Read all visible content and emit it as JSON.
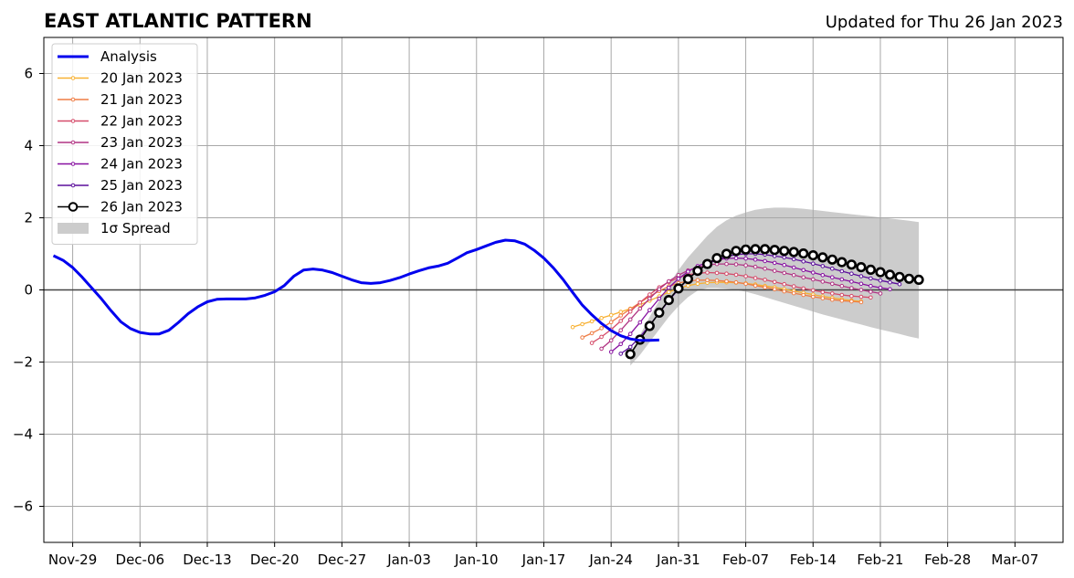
{
  "chart_data": {
    "type": "line",
    "title": "EAST ATLANTIC PATTERN",
    "subtitle": "Updated for Thu 26 Jan 2023",
    "xlabel": "",
    "ylabel": "",
    "x_range": [
      "2022-11-26",
      "2023-03-12"
    ],
    "ylim": [
      -7,
      7
    ],
    "yticks": [
      -6,
      -4,
      -2,
      0,
      2,
      4,
      6
    ],
    "ytick_labels": [
      "−6",
      "−4",
      "−2",
      "0",
      "2",
      "4",
      "6"
    ],
    "xticks": [
      "2022-11-29",
      "2022-12-06",
      "2022-12-13",
      "2022-12-20",
      "2022-12-27",
      "2023-01-03",
      "2023-01-10",
      "2023-01-17",
      "2023-01-24",
      "2023-01-31",
      "2023-02-07",
      "2023-02-14",
      "2023-02-21",
      "2023-02-28",
      "2023-03-07"
    ],
    "xtick_labels": [
      "Nov-29",
      "Dec-06",
      "Dec-13",
      "Dec-20",
      "Dec-27",
      "Jan-03",
      "Jan-10",
      "Jan-17",
      "Jan-24",
      "Jan-31",
      "Feb-07",
      "Feb-14",
      "Feb-21",
      "Feb-28",
      "Mar-07"
    ],
    "grid": true,
    "legend_position": "top-left",
    "analysis": {
      "name": "Analysis",
      "color": "#0000ee",
      "start": "2022-11-27",
      "values": [
        0.95,
        0.82,
        0.62,
        0.35,
        0.05,
        -0.25,
        -0.58,
        -0.88,
        -1.07,
        -1.18,
        -1.22,
        -1.22,
        -1.12,
        -0.9,
        -0.66,
        -0.47,
        -0.33,
        -0.26,
        -0.25,
        -0.25,
        -0.25,
        -0.22,
        -0.15,
        -0.05,
        0.12,
        0.38,
        0.55,
        0.58,
        0.55,
        0.48,
        0.38,
        0.28,
        0.2,
        0.18,
        0.2,
        0.26,
        0.34,
        0.44,
        0.53,
        0.61,
        0.66,
        0.74,
        0.88,
        1.03,
        1.12,
        1.22,
        1.32,
        1.38,
        1.36,
        1.27,
        1.1,
        0.88,
        0.61,
        0.29,
        -0.07,
        -0.42,
        -0.69,
        -0.93,
        -1.13,
        -1.27,
        -1.36,
        -1.4,
        -1.4,
        -1.39
      ]
    },
    "forecasts": [
      {
        "name": "20 Jan 2023",
        "color": "#f8b132",
        "start": "2023-01-20",
        "values": [
          -1.03,
          -0.95,
          -0.87,
          -0.78,
          -0.7,
          -0.61,
          -0.52,
          -0.41,
          -0.3,
          -0.18,
          -0.06,
          0.04,
          0.12,
          0.17,
          0.2,
          0.21,
          0.21,
          0.2,
          0.18,
          0.15,
          0.11,
          0.07,
          0.02,
          -0.03,
          -0.08,
          -0.13,
          -0.18,
          -0.22,
          -0.26,
          -0.29,
          -0.32
        ]
      },
      {
        "name": "21 Jan 2023",
        "color": "#ef7d45",
        "start": "2023-01-21",
        "values": [
          -1.32,
          -1.2,
          -1.06,
          -0.89,
          -0.71,
          -0.53,
          -0.35,
          -0.18,
          -0.03,
          0.1,
          0.19,
          0.24,
          0.27,
          0.27,
          0.26,
          0.24,
          0.21,
          0.17,
          0.12,
          0.07,
          0.02,
          -0.04,
          -0.09,
          -0.14,
          -0.19,
          -0.23,
          -0.27,
          -0.3,
          -0.32,
          -0.34
        ]
      },
      {
        "name": "22 Jan 2023",
        "color": "#d54b6a",
        "start": "2023-01-22",
        "values": [
          -1.47,
          -1.3,
          -1.1,
          -0.86,
          -0.6,
          -0.35,
          -0.13,
          0.07,
          0.22,
          0.34,
          0.42,
          0.46,
          0.48,
          0.47,
          0.45,
          0.42,
          0.38,
          0.33,
          0.28,
          0.22,
          0.16,
          0.1,
          0.04,
          -0.01,
          -0.06,
          -0.1,
          -0.14,
          -0.17,
          -0.19,
          -0.21
        ]
      },
      {
        "name": "23 Jan 2023",
        "color": "#b13383",
        "start": "2023-01-23",
        "values": [
          -1.63,
          -1.4,
          -1.12,
          -0.82,
          -0.52,
          -0.24,
          0.02,
          0.24,
          0.41,
          0.54,
          0.63,
          0.69,
          0.72,
          0.72,
          0.71,
          0.68,
          0.64,
          0.59,
          0.53,
          0.47,
          0.41,
          0.35,
          0.29,
          0.23,
          0.17,
          0.11,
          0.05,
          0.0,
          -0.05,
          -0.1
        ]
      },
      {
        "name": "24 Jan 2023",
        "color": "#8710a0",
        "start": "2023-01-24",
        "values": [
          -1.72,
          -1.5,
          -1.22,
          -0.9,
          -0.56,
          -0.24,
          0.06,
          0.31,
          0.51,
          0.66,
          0.77,
          0.84,
          0.87,
          0.88,
          0.87,
          0.84,
          0.8,
          0.75,
          0.69,
          0.62,
          0.55,
          0.48,
          0.41,
          0.35,
          0.29,
          0.23,
          0.17,
          0.11,
          0.06,
          0.02
        ]
      },
      {
        "name": "25 Jan 2023",
        "color": "#5c0f9c",
        "start": "2023-01-25",
        "values": [
          -1.77,
          -1.58,
          -1.3,
          -0.98,
          -0.64,
          -0.3,
          0.02,
          0.3,
          0.53,
          0.71,
          0.84,
          0.93,
          0.98,
          1.0,
          1.0,
          0.98,
          0.94,
          0.9,
          0.85,
          0.79,
          0.73,
          0.66,
          0.59,
          0.52,
          0.45,
          0.38,
          0.32,
          0.26,
          0.21,
          0.16
        ]
      },
      {
        "name": "26 Jan 2023",
        "color": "#000000",
        "start": "2023-01-26",
        "values": [
          -1.78,
          -1.38,
          -1.0,
          -0.63,
          -0.28,
          0.04,
          0.3,
          0.53,
          0.72,
          0.88,
          1.0,
          1.08,
          1.12,
          1.13,
          1.13,
          1.11,
          1.08,
          1.05,
          1.01,
          0.96,
          0.9,
          0.84,
          0.77,
          0.7,
          0.63,
          0.56,
          0.49,
          0.42,
          0.36,
          0.31,
          0.28
        ]
      }
    ],
    "spread": {
      "name": "1σ Spread",
      "color": "#cccccc",
      "start": "2023-01-26",
      "upper": [
        -1.75,
        -1.25,
        -0.75,
        -0.3,
        0.15,
        0.55,
        0.9,
        1.2,
        1.5,
        1.75,
        1.93,
        2.06,
        2.15,
        2.22,
        2.26,
        2.28,
        2.28,
        2.27,
        2.25,
        2.22,
        2.19,
        2.16,
        2.13,
        2.1,
        2.07,
        2.04,
        2.01,
        1.98,
        1.95,
        1.92,
        1.88
      ],
      "lower": [
        -2.1,
        -1.8,
        -1.45,
        -1.1,
        -0.75,
        -0.45,
        -0.2,
        -0.02,
        0.05,
        0.05,
        0.03,
        0.0,
        -0.05,
        -0.12,
        -0.2,
        -0.28,
        -0.36,
        -0.44,
        -0.52,
        -0.6,
        -0.68,
        -0.75,
        -0.82,
        -0.89,
        -0.96,
        -1.03,
        -1.1,
        -1.16,
        -1.22,
        -1.29,
        -1.35
      ]
    }
  }
}
